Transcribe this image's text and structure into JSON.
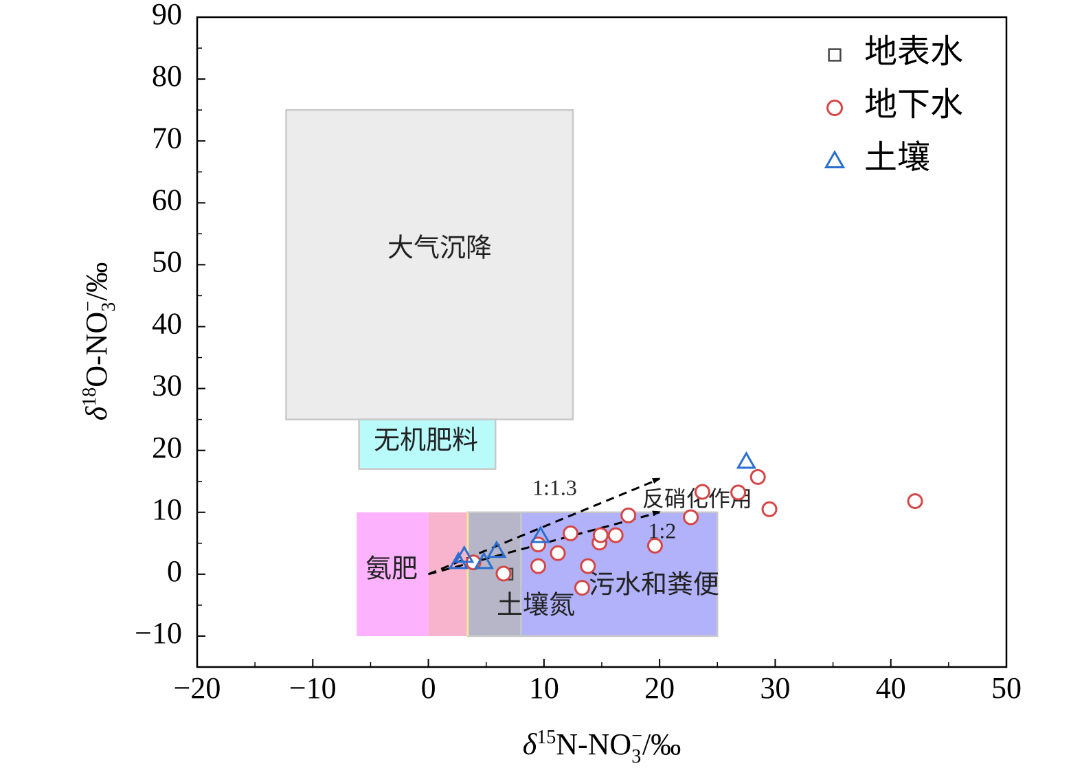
{
  "chart_data": {
    "type": "scatter",
    "xlabel": {
      "prefix": "δ",
      "sup1": "15",
      "main": "N-NO",
      "sub": "3",
      "sup2": "−",
      "suffix": "/‰"
    },
    "ylabel": {
      "prefix": "δ",
      "sup1": "18",
      "main": "O-NO",
      "sub": "3",
      "sup2": "−",
      "suffix": "/‰"
    },
    "xlim": [
      -20,
      50
    ],
    "ylim": [
      -15,
      90
    ],
    "xticks": [
      -20,
      -10,
      0,
      10,
      20,
      30,
      40,
      50
    ],
    "yticks": [
      -10,
      0,
      10,
      20,
      30,
      40,
      50,
      60,
      70,
      80,
      90
    ],
    "xtick_labels": [
      "−20",
      "−10",
      "0",
      "10",
      "20",
      "30",
      "40",
      "50"
    ],
    "ytick_labels": [
      "−10",
      "0",
      "10",
      "20",
      "30",
      "40",
      "50",
      "60",
      "70",
      "80",
      "90"
    ],
    "legend_position": "top-right",
    "regions": [
      {
        "name": "大气沉降",
        "x": [
          -12.3,
          12.5
        ],
        "y": [
          25,
          75
        ],
        "color": "#ececec",
        "stroke": "#c8c8c8"
      },
      {
        "name": "无机肥料",
        "x": [
          -6,
          5.8
        ],
        "y": [
          17,
          25
        ],
        "color": "#b9fbfb",
        "stroke": "#c8c8c8"
      },
      {
        "name": "氨肥",
        "x": [
          -6.2,
          0
        ],
        "y": [
          -10,
          10
        ],
        "color": "#fdb2fd",
        "stroke": "none"
      },
      {
        "name": "",
        "x": [
          0,
          3.4
        ],
        "y": [
          -10,
          10
        ],
        "color": "#f8b4cc",
        "stroke": "none"
      },
      {
        "name": "土壤氮",
        "x": [
          3.4,
          8
        ],
        "y": [
          -10,
          10
        ],
        "color": "#b6b6c8",
        "stroke": "#c8c8c8"
      },
      {
        "name": "污水和粪便",
        "x": [
          8,
          25
        ],
        "y": [
          -10,
          10
        ],
        "color": "#b2b2fb",
        "stroke": "#c8c8c8"
      }
    ],
    "series": [
      {
        "name": "地表水",
        "marker": "square",
        "color": "#444444",
        "points": [
          [
            6.8,
            0
          ]
        ]
      },
      {
        "name": "地下水",
        "marker": "circle",
        "color": "#d64545",
        "points": [
          [
            3.9,
            1.9
          ],
          [
            6.5,
            0.1
          ],
          [
            9.5,
            4.8
          ],
          [
            9.5,
            1.3
          ],
          [
            11.2,
            3.4
          ],
          [
            12.3,
            6.6
          ],
          [
            13.3,
            -2.2
          ],
          [
            13.8,
            1.3
          ],
          [
            14.8,
            5.1
          ],
          [
            14.9,
            6.3
          ],
          [
            16.2,
            6.3
          ],
          [
            17.3,
            9.5
          ],
          [
            19.6,
            4.6
          ],
          [
            22.7,
            9.2
          ],
          [
            23.7,
            13.3
          ],
          [
            26.8,
            13.2
          ],
          [
            28.5,
            15.7
          ],
          [
            29.5,
            10.5
          ],
          [
            42.1,
            11.8
          ]
        ]
      },
      {
        "name": "土壤",
        "marker": "triangle",
        "color": "#2a6fd0",
        "points": [
          [
            2.6,
            2.0
          ],
          [
            3.1,
            3.0
          ],
          [
            4.8,
            2.0
          ],
          [
            5.9,
            3.8
          ],
          [
            9.7,
            6.2
          ],
          [
            27.5,
            18.2
          ]
        ]
      }
    ],
    "annotations": [
      {
        "text": "反硝化作用",
        "x": 18.5,
        "y": 11.8
      },
      {
        "text": "1:1.3",
        "x": 9,
        "y": 13.6
      },
      {
        "text": "1:2",
        "x": 19,
        "y": 6.6
      }
    ],
    "arrows": [
      {
        "from": [
          0,
          0
        ],
        "to": [
          20,
          15.4
        ]
      },
      {
        "from": [
          0,
          0
        ],
        "to": [
          20,
          10
        ]
      }
    ]
  }
}
